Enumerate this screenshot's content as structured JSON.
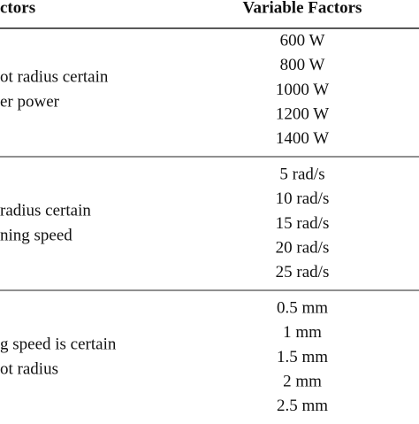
{
  "header": {
    "left": "ctors",
    "right": "Variable Factors"
  },
  "groups": [
    {
      "left": [
        "ot radius certain",
        "er power"
      ],
      "values": [
        "600 W",
        "800 W",
        "1000 W",
        "1200 W",
        "1400 W"
      ]
    },
    {
      "left": [
        "radius certain",
        "ning speed"
      ],
      "values": [
        "5 rad/s",
        "10 rad/s",
        "15 rad/s",
        "20 rad/s",
        "25 rad/s"
      ]
    },
    {
      "left": [
        "g speed is certain",
        "ot radius"
      ],
      "values": [
        "0.5 mm",
        "1 mm",
        "1.5 mm",
        "2 mm",
        "2.5 mm"
      ]
    }
  ]
}
